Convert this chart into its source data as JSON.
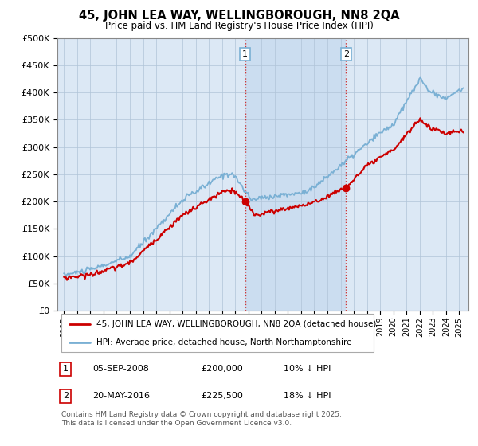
{
  "title": "45, JOHN LEA WAY, WELLINGBOROUGH, NN8 2QA",
  "subtitle": "Price paid vs. HM Land Registry's House Price Index (HPI)",
  "legend_line1": "45, JOHN LEA WAY, WELLINGBOROUGH, NN8 2QA (detached house)",
  "legend_line2": "HPI: Average price, detached house, North Northamptonshire",
  "red_color": "#cc0000",
  "blue_color": "#7ab0d4",
  "annotation1_date": "05-SEP-2008",
  "annotation1_price": "£200,000",
  "annotation1_hpi": "10% ↓ HPI",
  "annotation2_date": "20-MAY-2016",
  "annotation2_price": "£225,500",
  "annotation2_hpi": "18% ↓ HPI",
  "footer": "Contains HM Land Registry data © Crown copyright and database right 2025.\nThis data is licensed under the Open Government Licence v3.0.",
  "ylim": [
    0,
    500000
  ],
  "yticks": [
    0,
    50000,
    100000,
    150000,
    200000,
    250000,
    300000,
    350000,
    400000,
    450000,
    500000
  ],
  "background_color": "#ffffff",
  "plot_bg_color": "#dce8f5",
  "grid_color": "#b0c4d8",
  "highlight_color": "#c8dcf0",
  "vline_color": "#cc3333"
}
